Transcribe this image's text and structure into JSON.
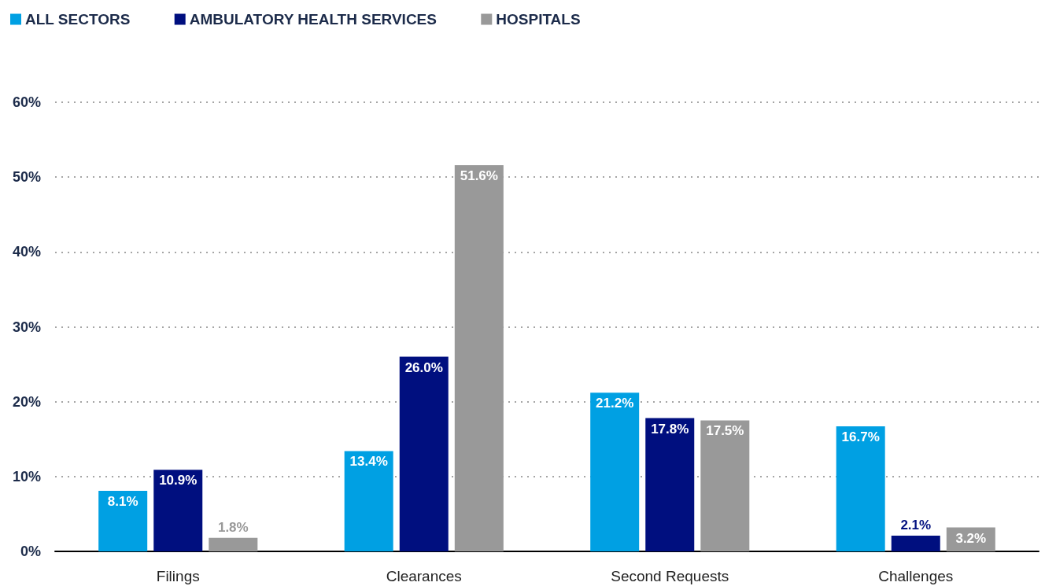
{
  "chart_data": {
    "type": "bar",
    "categories": [
      "Filings",
      "Clearances",
      "Second Requests",
      "Challenges"
    ],
    "series": [
      {
        "name": "ALL SECTORS",
        "color": "#00a0e3",
        "values": [
          8.1,
          13.4,
          21.2,
          16.7
        ]
      },
      {
        "name": "AMBULATORY HEALTH SERVICES",
        "color": "#000f7f",
        "values": [
          10.9,
          26.0,
          17.8,
          2.1
        ]
      },
      {
        "name": "HOSPITALS",
        "color": "#999999",
        "values": [
          1.8,
          51.6,
          17.5,
          3.2
        ]
      }
    ],
    "value_labels": [
      [
        "8.1%",
        "13.4%",
        "21.2%",
        "16.7%"
      ],
      [
        "10.9%",
        "26.0%",
        "17.8%",
        "2.1%"
      ],
      [
        "1.8%",
        "51.6%",
        "17.5%",
        "3.2%"
      ]
    ],
    "ylim": [
      0,
      60
    ],
    "yticks": [
      {
        "value": 0,
        "label": "0%"
      },
      {
        "value": 10,
        "label": "10%"
      },
      {
        "value": 20,
        "label": "20%"
      },
      {
        "value": 30,
        "label": "30%"
      },
      {
        "value": 40,
        "label": "40%"
      },
      {
        "value": 50,
        "label": "50%"
      },
      {
        "value": 60,
        "label": "60%"
      }
    ],
    "grid": "y",
    "legend": "top left"
  }
}
